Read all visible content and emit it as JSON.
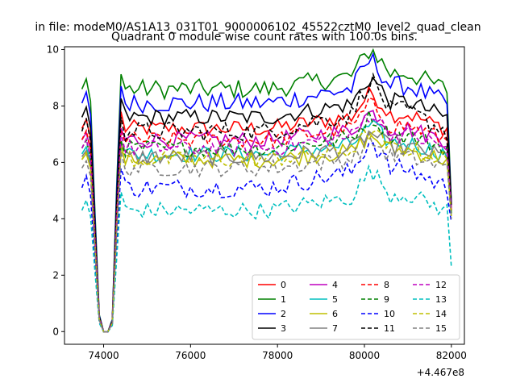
{
  "chart_data": {
    "type": "line",
    "suptitle": "in file: modeM0/AS1A13_031T01_9000006102_45522cztM0_level2_quad_clean",
    "title": "Quadrant 0 module wise count rates with 100.0s bins.",
    "xlabel": "",
    "ylabel": "",
    "offset_label": "+4.467e8",
    "x_offset": 446700000,
    "xlim": [
      73100,
      82300
    ],
    "ylim": [
      -0.45,
      10.1
    ],
    "xticks": [
      74000,
      76000,
      78000,
      80000,
      82000
    ],
    "xtick_labels": [
      "74000",
      "76000",
      "78000",
      "80000",
      "82000"
    ],
    "yticks": [
      0,
      2,
      4,
      6,
      8,
      10
    ],
    "ytick_labels": [
      "0",
      "2",
      "4",
      "6",
      "8",
      "10"
    ],
    "grid": false,
    "legend": {
      "placement": "bottom-right",
      "ncol": 4
    },
    "x_start": 73500,
    "x_step": 100,
    "shape_head": [
      0,
      0.6,
      -0.05,
      -0.5,
      -0.93,
      -1.0,
      -1.0,
      -0.95,
      -0.4
    ],
    "series": [
      {
        "name": "0",
        "color": "#ff0000",
        "dash": "solid",
        "base": 7.2,
        "amp": 0.9,
        "noise": 0.3,
        "end": 4.4
      },
      {
        "name": "1",
        "color": "#008000",
        "dash": "solid",
        "base": 8.6,
        "amp": 1.0,
        "noise": 0.35,
        "end": 4.6
      },
      {
        "name": "2",
        "color": "#0000ff",
        "dash": "solid",
        "base": 8.1,
        "amp": 1.1,
        "noise": 0.35,
        "end": 4.5
      },
      {
        "name": "3",
        "color": "#000000",
        "dash": "solid",
        "base": 7.6,
        "amp": 1.0,
        "noise": 0.3,
        "end": 4.5
      },
      {
        "name": "4",
        "color": "#bf00bf",
        "dash": "solid",
        "base": 6.8,
        "amp": 0.7,
        "noise": 0.3,
        "end": 4.3
      },
      {
        "name": "5",
        "color": "#00bfbf",
        "dash": "solid",
        "base": 6.3,
        "amp": 0.7,
        "noise": 0.3,
        "end": 4.2
      },
      {
        "name": "6",
        "color": "#bfbf00",
        "dash": "solid",
        "base": 6.1,
        "amp": 0.6,
        "noise": 0.3,
        "end": 4.1
      },
      {
        "name": "7",
        "color": "#808080",
        "dash": "solid",
        "base": 6.2,
        "amp": 0.6,
        "noise": 0.3,
        "end": 4.2
      },
      {
        "name": "8",
        "color": "#ff0000",
        "dash": "dashed",
        "base": 6.8,
        "amp": 0.9,
        "noise": 0.3,
        "end": 4.3
      },
      {
        "name": "9",
        "color": "#008000",
        "dash": "dashed",
        "base": 6.5,
        "amp": 0.8,
        "noise": 0.3,
        "end": 4.2
      },
      {
        "name": "10",
        "color": "#0000ff",
        "dash": "dashed",
        "base": 5.1,
        "amp": 1.2,
        "noise": 0.35,
        "end": 3.9
      },
      {
        "name": "11",
        "color": "#000000",
        "dash": "dashed",
        "base": 7.1,
        "amp": 1.3,
        "noise": 0.35,
        "end": 4.4
      },
      {
        "name": "12",
        "color": "#bf00bf",
        "dash": "dashed",
        "base": 6.5,
        "amp": 0.9,
        "noise": 0.3,
        "end": 4.3
      },
      {
        "name": "13",
        "color": "#00bfbf",
        "dash": "dashed",
        "base": 4.3,
        "amp": 1.0,
        "noise": 0.3,
        "end": 2.3
      },
      {
        "name": "14",
        "color": "#bfbf00",
        "dash": "dashed",
        "base": 6.1,
        "amp": 0.7,
        "noise": 0.3,
        "end": 4.1
      },
      {
        "name": "15",
        "color": "#808080",
        "dash": "dashed",
        "base": 5.8,
        "amp": 0.7,
        "noise": 0.3,
        "end": 4.0
      }
    ]
  }
}
